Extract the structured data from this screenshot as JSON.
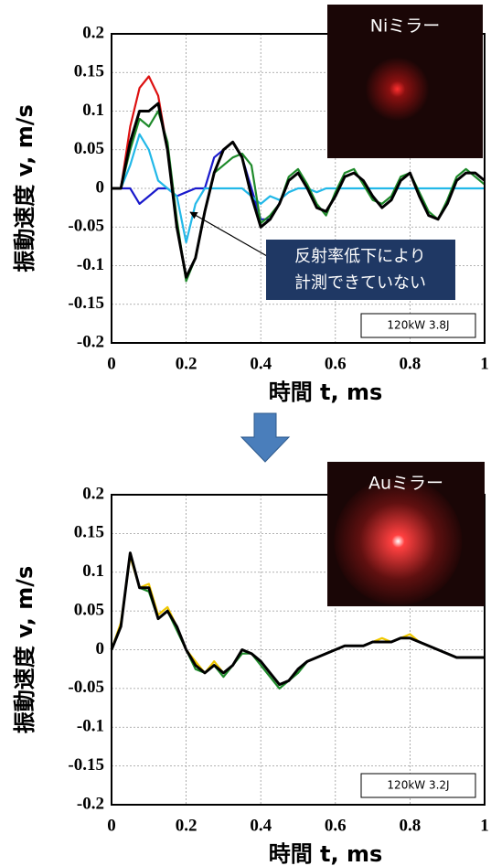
{
  "chart_data": [
    {
      "type": "line",
      "inset_label": "Niミラー",
      "power_label": "120kW  3.8J",
      "annotation": [
        "反射率低下により",
        "計測できていない"
      ],
      "x_label": "時間 t, ms",
      "y_label": "振動速度 v, m/s",
      "xlim": [
        0,
        1
      ],
      "ylim": [
        -0.2,
        0.2
      ],
      "xticks": [
        0,
        0.2,
        0.4,
        0.6,
        0.8,
        1
      ],
      "yticks": [
        0.2,
        0.15,
        0.1,
        0.05,
        0,
        -0.05,
        -0.1,
        -0.15,
        -0.2
      ],
      "grid": true,
      "x": [
        0,
        0.025,
        0.05,
        0.075,
        0.1,
        0.125,
        0.15,
        0.175,
        0.2,
        0.225,
        0.25,
        0.275,
        0.3,
        0.325,
        0.35,
        0.375,
        0.4,
        0.425,
        0.45,
        0.475,
        0.5,
        0.525,
        0.55,
        0.575,
        0.6,
        0.625,
        0.65,
        0.675,
        0.7,
        0.725,
        0.75,
        0.775,
        0.8,
        0.825,
        0.85,
        0.875,
        0.9,
        0.925,
        0.95,
        0.975,
        1
      ],
      "series": [
        {
          "color": "#1a1acc",
          "values": [
            0,
            0,
            0,
            -0.02,
            -0.01,
            0,
            0,
            -0.01,
            -0.005,
            0,
            0,
            0.04,
            0.05,
            0.06,
            0.04,
            0,
            -0.04,
            -0.04,
            -0.02,
            0.01,
            0.02,
            0,
            -0.025,
            -0.03,
            -0.01,
            0.015,
            0.02,
            0.01,
            -0.01,
            -0.025,
            -0.015,
            0.01,
            0.02,
            -0.01,
            -0.035,
            -0.04,
            -0.02,
            0.01,
            0.02,
            0.02,
            0.01
          ]
        },
        {
          "color": "#22b8e8",
          "values": [
            0,
            0,
            0.03,
            0.07,
            0.05,
            0.01,
            0,
            -0.01,
            -0.07,
            -0.02,
            0,
            0,
            0,
            0,
            0,
            -0.01,
            -0.02,
            -0.01,
            -0.015,
            -0.005,
            0,
            0,
            -0.005,
            0,
            0,
            0,
            0,
            0,
            0,
            0,
            0,
            0,
            0,
            0,
            0,
            0,
            0,
            0,
            0,
            0,
            0
          ]
        },
        {
          "color": "#dd1111",
          "values": [
            0,
            0,
            0.08,
            0.13,
            0.145,
            0.12,
            0.05,
            -0.05,
            -0.115,
            -0.09,
            -0.03,
            0.02,
            0.05,
            0.06,
            0.04,
            -0.01,
            -0.05,
            -0.04,
            -0.02,
            0.01,
            0.02,
            0,
            -0.025,
            -0.03,
            -0.01,
            0.015,
            0.02,
            0.01,
            -0.01,
            -0.025,
            -0.015,
            0.01,
            0.02,
            -0.01,
            -0.035,
            -0.04,
            -0.02,
            0.01,
            0.02,
            0.02,
            0.01
          ]
        },
        {
          "color": "#1e8a2a",
          "values": [
            0,
            0,
            0.05,
            0.09,
            0.08,
            0.1,
            0.06,
            -0.04,
            -0.12,
            -0.09,
            -0.03,
            0.02,
            0.03,
            0.04,
            0.045,
            0.03,
            -0.045,
            -0.035,
            -0.02,
            0.015,
            0.025,
            0.005,
            -0.02,
            -0.035,
            -0.005,
            0.02,
            0.025,
            0.005,
            -0.015,
            -0.02,
            -0.01,
            0.015,
            0.02,
            -0.005,
            -0.03,
            -0.04,
            -0.015,
            0.015,
            0.025,
            0.015,
            0.005
          ]
        },
        {
          "color": "#000000",
          "values": [
            0,
            0,
            0.06,
            0.1,
            0.1,
            0.11,
            0.05,
            -0.05,
            -0.115,
            -0.09,
            -0.03,
            0.02,
            0.05,
            0.06,
            0.04,
            -0.01,
            -0.05,
            -0.04,
            -0.02,
            0.01,
            0.02,
            0,
            -0.025,
            -0.03,
            -0.01,
            0.015,
            0.02,
            0.01,
            -0.01,
            -0.025,
            -0.015,
            0.01,
            0.02,
            -0.01,
            -0.035,
            -0.04,
            -0.02,
            0.01,
            0.02,
            0.02,
            0.01
          ]
        }
      ]
    },
    {
      "type": "line",
      "inset_label": "Auミラー",
      "power_label": "120kW  3.2J",
      "x_label": "時間 t, ms",
      "y_label": "振動速度 v, m/s",
      "xlim": [
        0,
        1
      ],
      "ylim": [
        -0.2,
        0.2
      ],
      "xticks": [
        0,
        0.2,
        0.4,
        0.6,
        0.8,
        1
      ],
      "yticks": [
        0.2,
        0.15,
        0.1,
        0.05,
        0,
        -0.05,
        -0.1,
        -0.15,
        -0.2
      ],
      "grid": true,
      "x": [
        0,
        0.025,
        0.05,
        0.075,
        0.1,
        0.125,
        0.15,
        0.175,
        0.2,
        0.225,
        0.25,
        0.275,
        0.3,
        0.325,
        0.35,
        0.375,
        0.4,
        0.425,
        0.45,
        0.475,
        0.5,
        0.525,
        0.55,
        0.575,
        0.6,
        0.625,
        0.65,
        0.675,
        0.7,
        0.725,
        0.75,
        0.775,
        0.8,
        0.825,
        0.85,
        0.875,
        0.9,
        0.925,
        0.95,
        0.975,
        1
      ],
      "series": [
        {
          "color": "#f0c800",
          "values": [
            0,
            0.035,
            0.12,
            0.08,
            0.085,
            0.045,
            0.055,
            0.03,
            0,
            -0.015,
            -0.03,
            -0.015,
            -0.03,
            -0.02,
            0,
            -0.005,
            -0.015,
            -0.03,
            -0.045,
            -0.04,
            -0.025,
            -0.015,
            -0.01,
            -0.005,
            0,
            0.005,
            0.005,
            0.005,
            0.01,
            0.015,
            0.01,
            0.015,
            0.02,
            0.01,
            0.005,
            0,
            -0.005,
            -0.01,
            -0.01,
            -0.01,
            -0.01
          ]
        },
        {
          "color": "#1e8a2a",
          "values": [
            0,
            0.03,
            0.125,
            0.08,
            0.075,
            0.04,
            0.05,
            0.025,
            0,
            -0.025,
            -0.03,
            -0.02,
            -0.035,
            -0.02,
            -0.005,
            -0.005,
            -0.02,
            -0.035,
            -0.05,
            -0.04,
            -0.03,
            -0.015,
            -0.01,
            -0.005,
            0,
            0.005,
            0.005,
            0.005,
            0.01,
            0.01,
            0.01,
            0.015,
            0.015,
            0.01,
            0.005,
            0,
            -0.005,
            -0.01,
            -0.01,
            -0.01,
            -0.01
          ]
        },
        {
          "color": "#000000",
          "values": [
            0,
            0.03,
            0.125,
            0.08,
            0.08,
            0.04,
            0.05,
            0.03,
            0,
            -0.02,
            -0.03,
            -0.02,
            -0.03,
            -0.02,
            0,
            -0.005,
            -0.015,
            -0.03,
            -0.045,
            -0.04,
            -0.025,
            -0.015,
            -0.01,
            -0.005,
            0,
            0.005,
            0.005,
            0.005,
            0.01,
            0.01,
            0.01,
            0.015,
            0.015,
            0.01,
            0.005,
            0,
            -0.005,
            -0.01,
            -0.01,
            -0.01,
            -0.01
          ]
        }
      ]
    }
  ]
}
